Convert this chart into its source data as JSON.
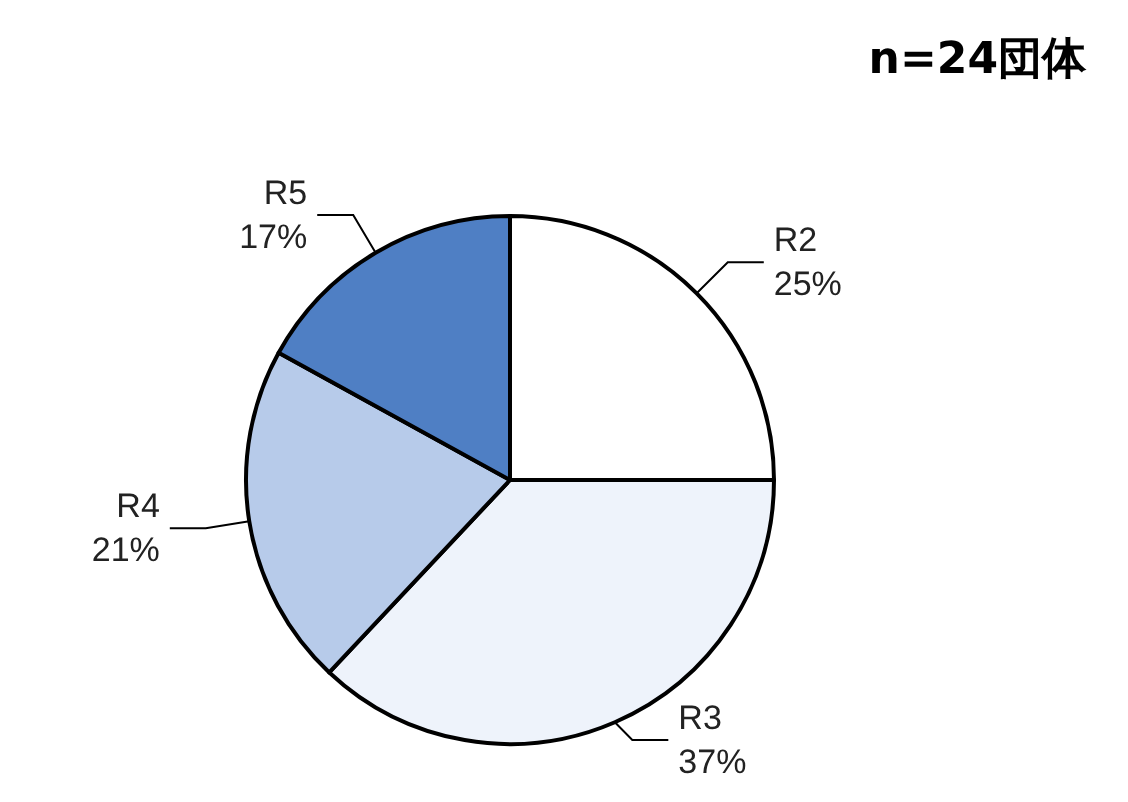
{
  "chart_data": {
    "type": "pie",
    "title": "n=24団体",
    "categories": [
      "R2",
      "R3",
      "R4",
      "R5"
    ],
    "values": [
      25,
      37,
      21,
      17
    ],
    "colors": [
      "#ffffff",
      "#eef3fb",
      "#b7cbea",
      "#4f7fc4"
    ],
    "value_labels": [
      "25%",
      "37%",
      "21%",
      "17%"
    ],
    "legend": false
  }
}
